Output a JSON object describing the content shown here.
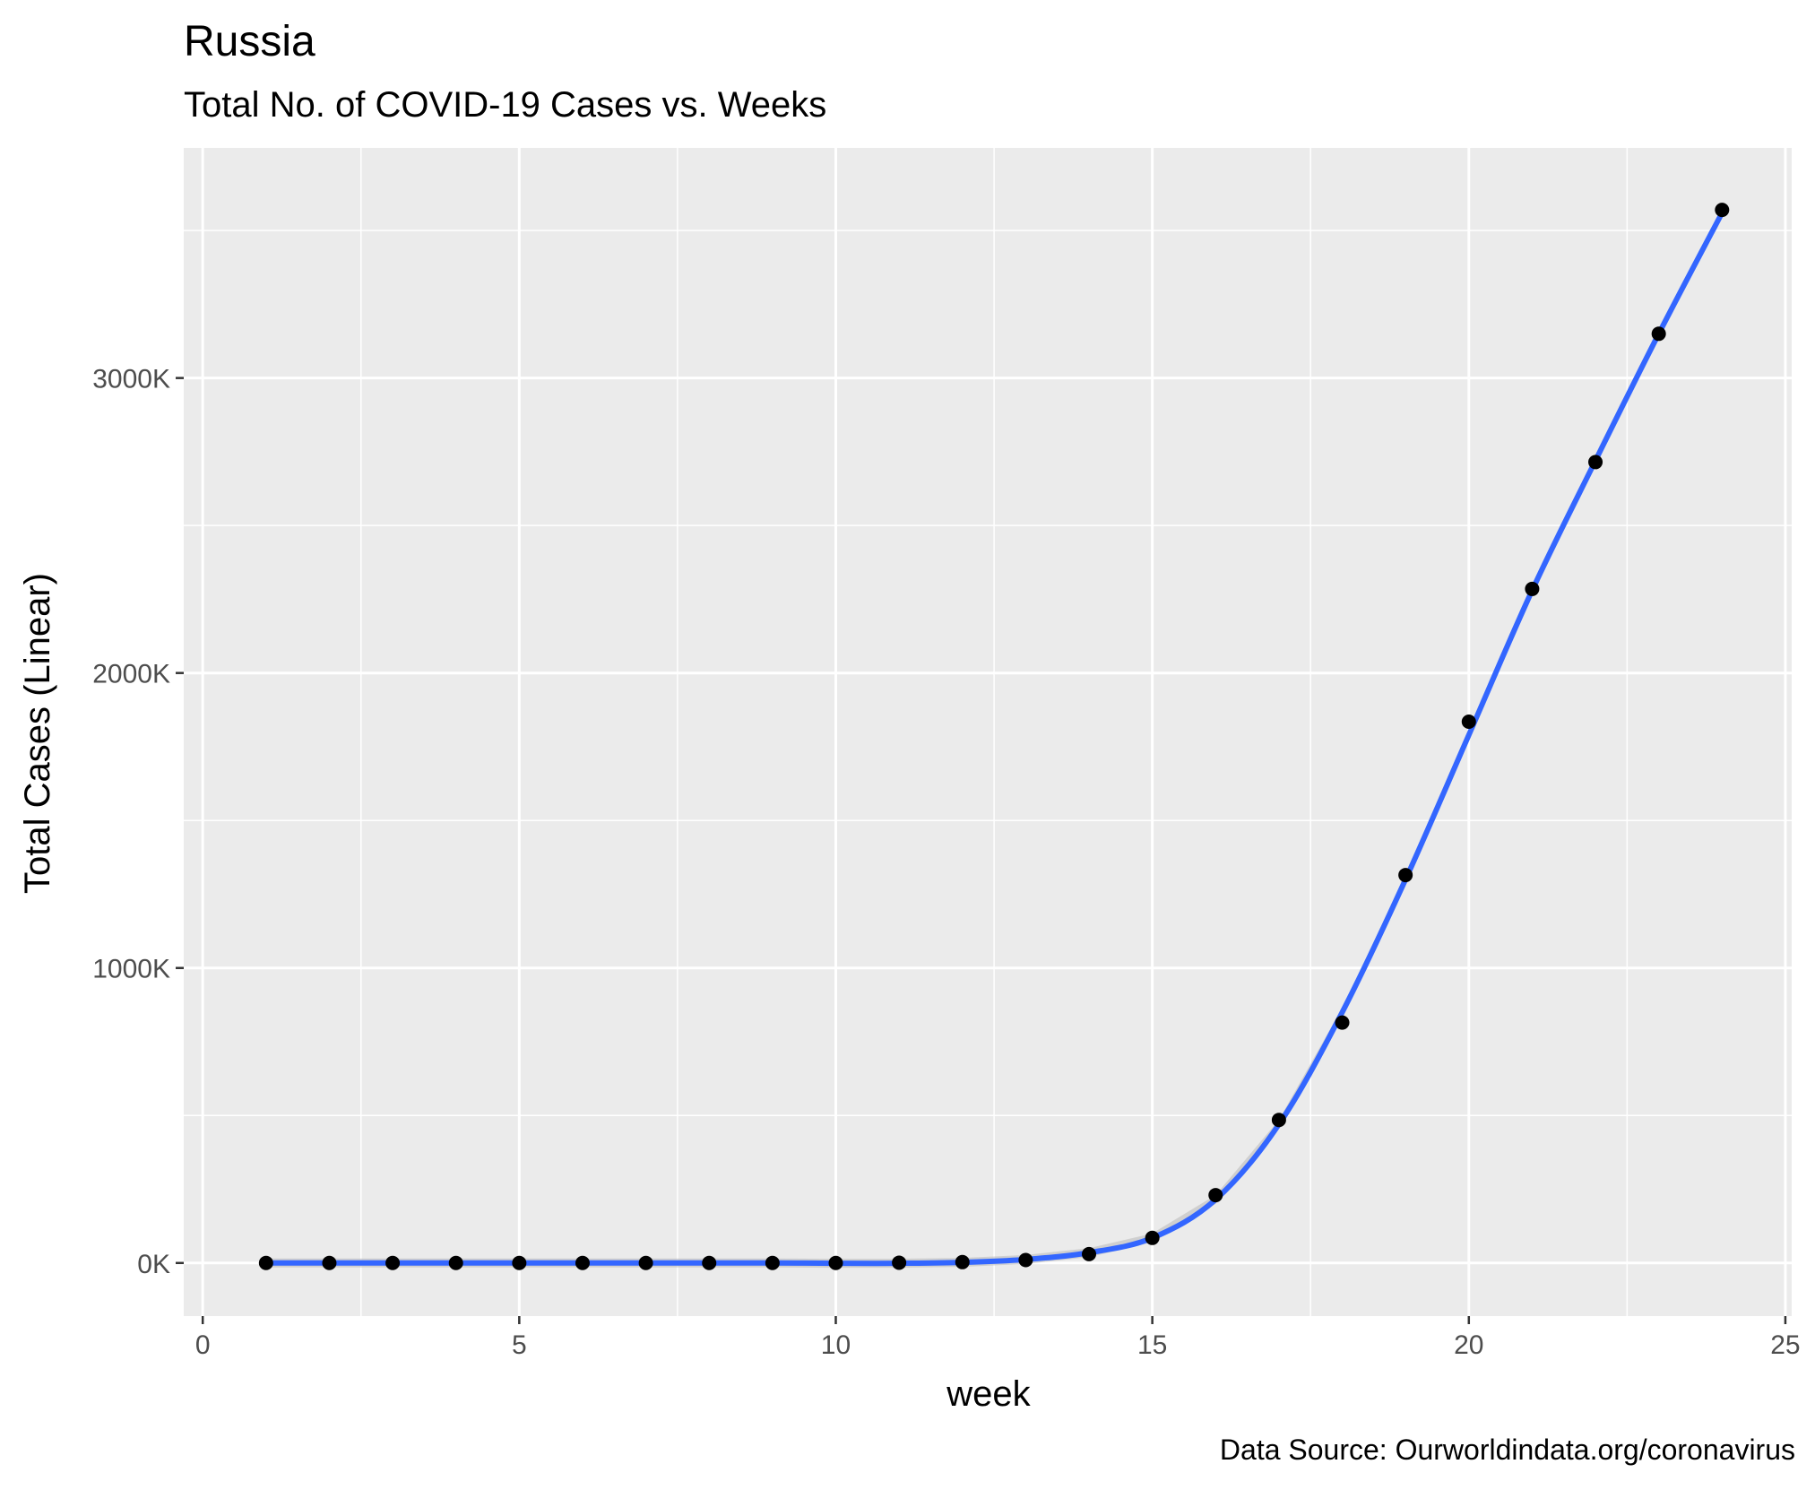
{
  "chart_data": {
    "type": "scatter",
    "title": "Russia",
    "subtitle": "Total No. of COVID-19 Cases vs. Weeks",
    "xlabel": "week",
    "ylabel": "Total Cases (Linear)",
    "caption": "Data Source: Ourworldindata.org/coronavirus",
    "xlim": [
      -0.3,
      25.1
    ],
    "ylim": [
      -180,
      3780
    ],
    "x_ticks": [
      0,
      5,
      10,
      15,
      20,
      25
    ],
    "x_tick_labels": [
      "0",
      "5",
      "10",
      "15",
      "20",
      "25"
    ],
    "y_ticks": [
      0,
      1000,
      2000,
      3000
    ],
    "y_tick_labels": [
      "0K",
      "1000K",
      "2000K",
      "3000K"
    ],
    "y_unit": "thousands of cases",
    "grid": true,
    "legend": "none",
    "points": {
      "x": [
        1,
        2,
        3,
        4,
        5,
        6,
        7,
        8,
        9,
        10,
        11,
        12,
        13,
        14,
        15,
        16,
        17,
        18,
        19,
        20,
        21,
        22,
        23,
        24
      ],
      "y": [
        0,
        0,
        0,
        0,
        0,
        0,
        0,
        0,
        0,
        0,
        1,
        3,
        10,
        30,
        85,
        230,
        485,
        815,
        1315,
        1835,
        2285,
        2715,
        3150,
        3570
      ]
    },
    "smooth": {
      "x": [
        1,
        2,
        3,
        4,
        5,
        6,
        7,
        8,
        9,
        10,
        11,
        12,
        13,
        14,
        15,
        16,
        17,
        18,
        19,
        20,
        21,
        22,
        23,
        24
      ],
      "y": [
        0,
        0,
        0,
        0,
        0,
        0,
        0,
        0,
        0,
        -1,
        -1,
        2,
        12,
        35,
        85,
        215,
        470,
        850,
        1300,
        1790,
        2280,
        2720,
        3150,
        3560
      ]
    },
    "colors": {
      "panel": "#EBEBEB",
      "grid": "#FFFFFF",
      "points": "#000000",
      "smooth_line": "#3366FF",
      "confidence_band": "#BDBDBD"
    }
  }
}
